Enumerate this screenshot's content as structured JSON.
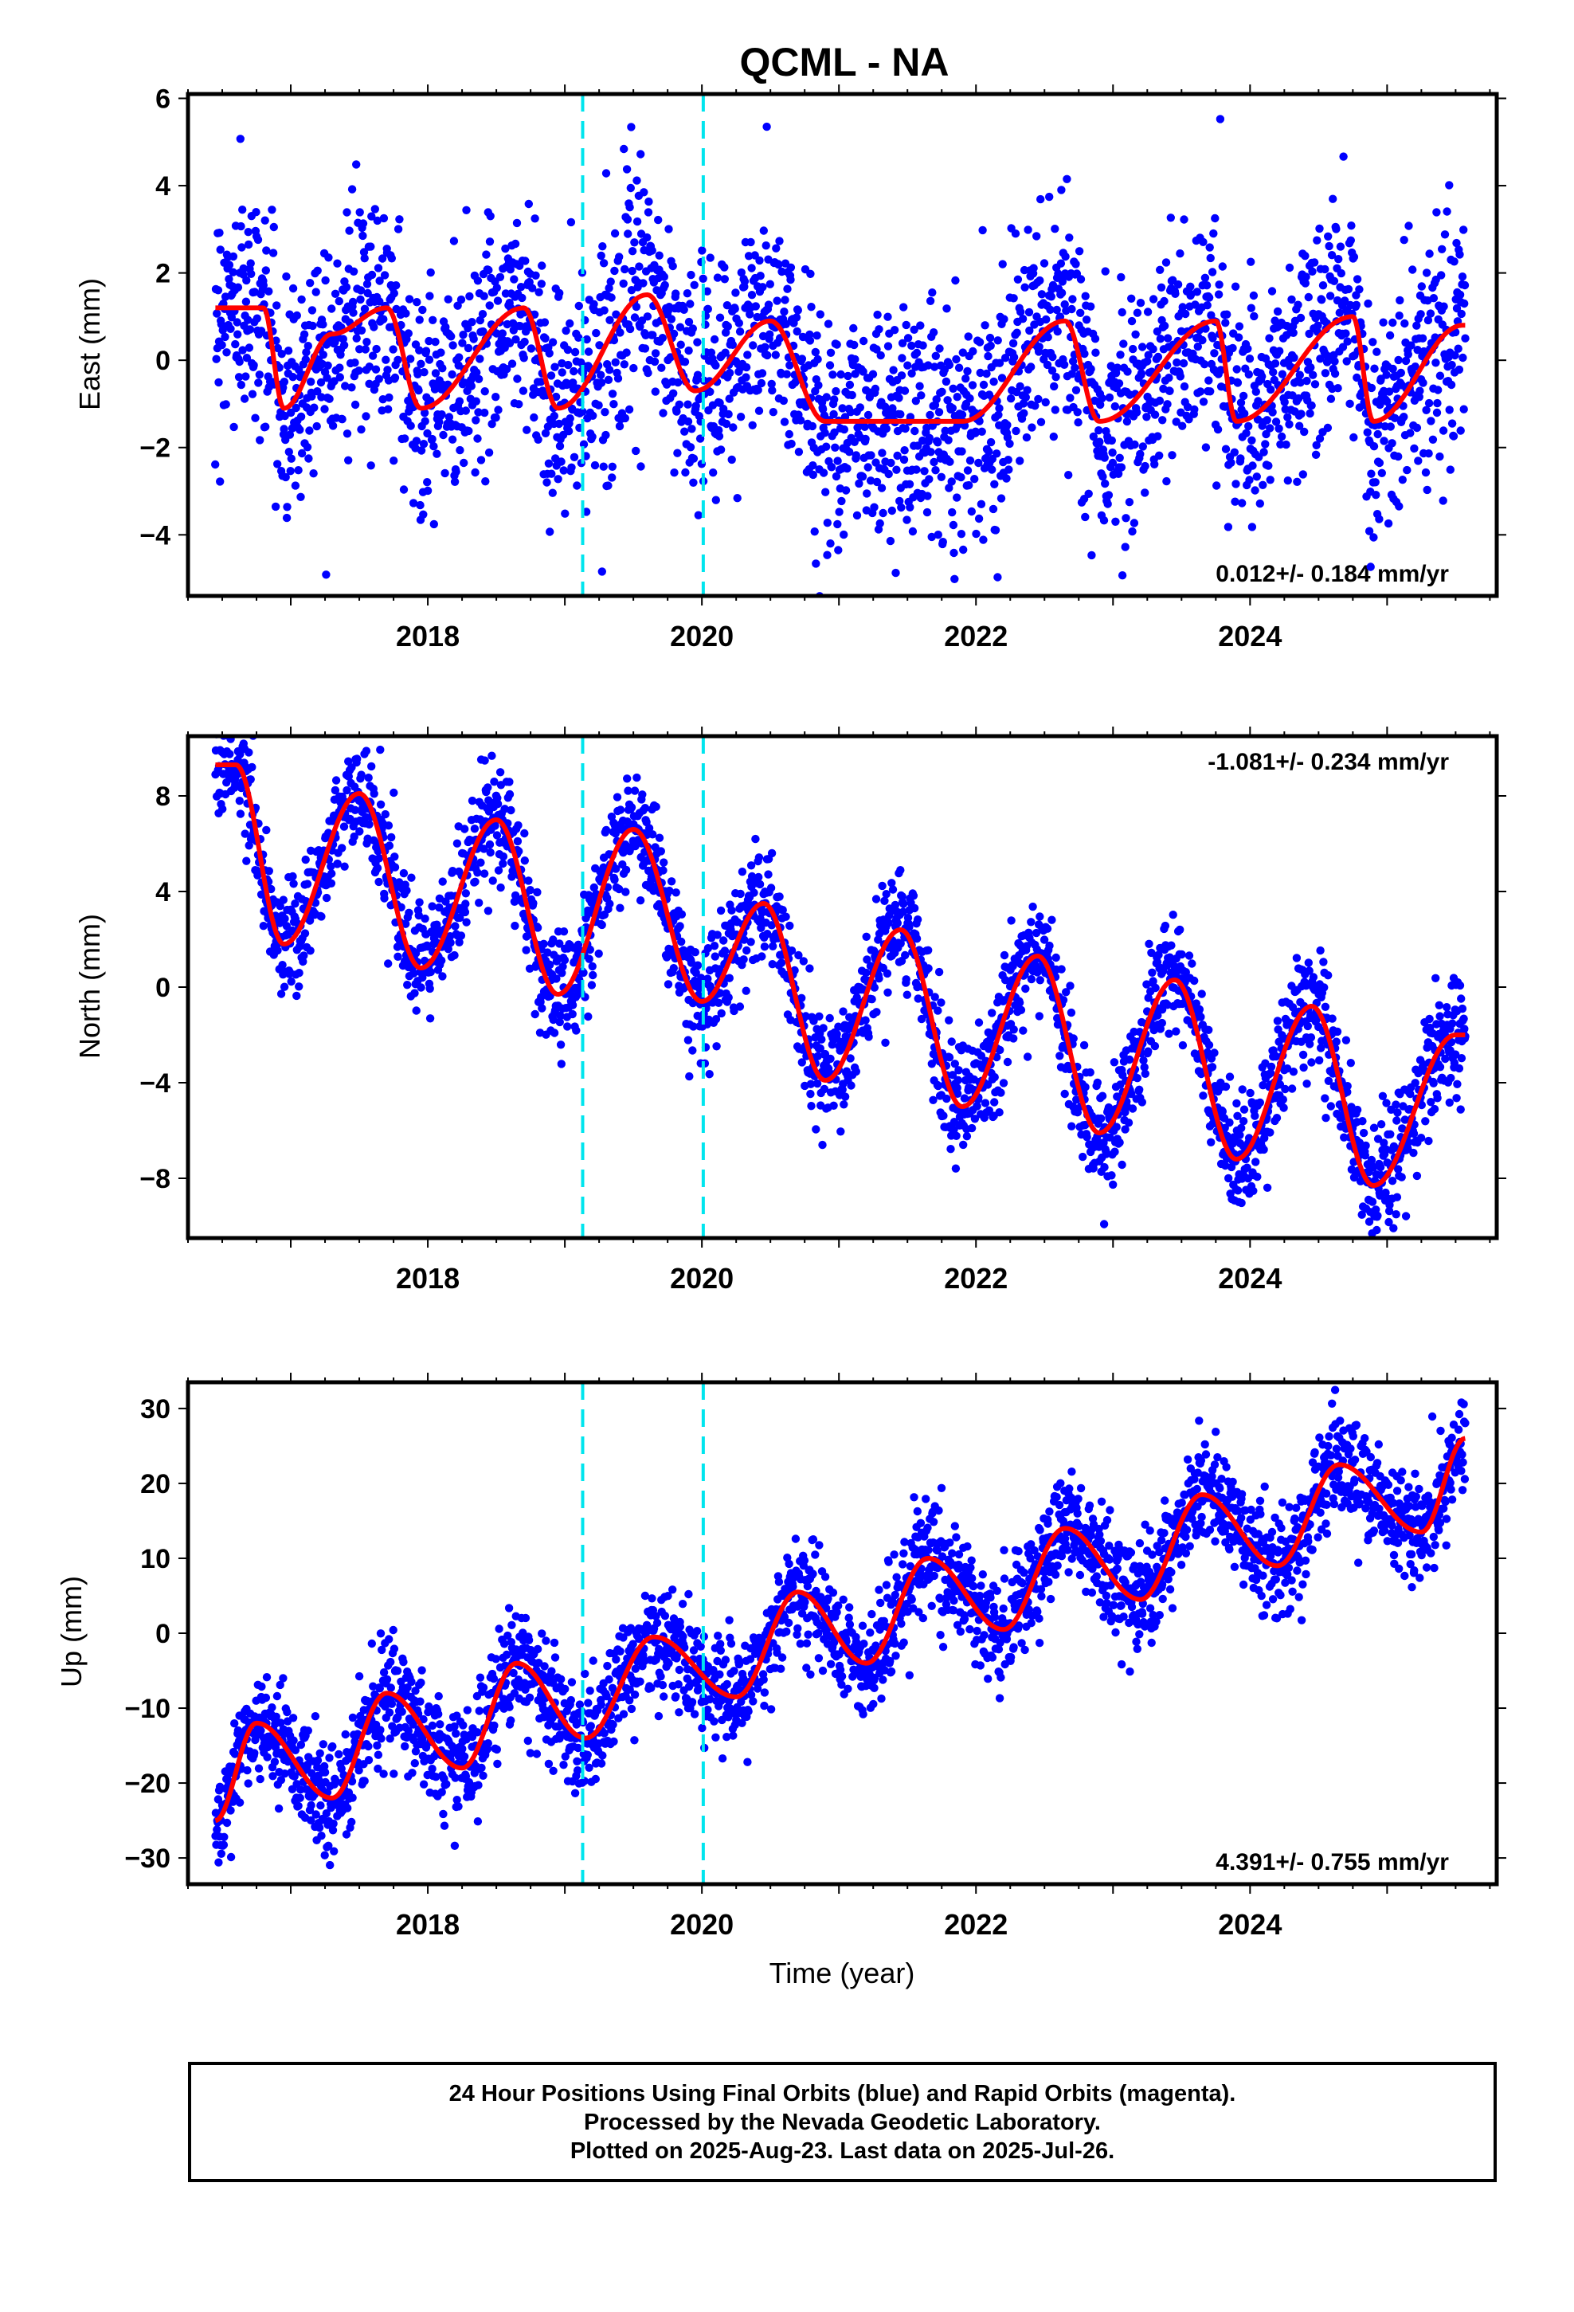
{
  "chart_data": [
    {
      "type": "scatter",
      "title": "QCML - NA",
      "ylabel": "East (mm)",
      "xlabel": "",
      "xlim": [
        2016.25,
        2025.8
      ],
      "ylim": [
        -5.4,
        6.1
      ],
      "x_ticks": [
        2018,
        2020,
        2022,
        2024
      ],
      "x_tick_labels": [
        "2018",
        "2020",
        "2022",
        "2024"
      ],
      "y_ticks": [
        -4,
        -2,
        0,
        2,
        4,
        6
      ],
      "y_tick_labels": [
        "−4",
        "−2",
        "0",
        "2",
        "4",
        "6"
      ],
      "rate_label": "0.012+/- 0.184 mm/yr",
      "rate_position": "bottom-right",
      "data_range_x": [
        2016.45,
        2025.57
      ],
      "trend": {
        "rate_mm_yr": 0.012,
        "value_at_2016_5": 0.3
      },
      "seasonal": {
        "annual_amplitude": 0.9,
        "semiannual_amplitude": 0.5,
        "scatter_sd": 1.3
      },
      "fit_peaks": [
        {
          "x": 2016.8,
          "y": 1.2
        },
        {
          "x": 2016.95,
          "y": -1.1
        },
        {
          "x": 2017.3,
          "y": 0.6
        },
        {
          "x": 2017.7,
          "y": 1.2
        },
        {
          "x": 2017.95,
          "y": -1.1
        },
        {
          "x": 2018.7,
          "y": 1.2
        },
        {
          "x": 2018.95,
          "y": -1.1
        },
        {
          "x": 2019.6,
          "y": 1.5
        },
        {
          "x": 2019.95,
          "y": -0.7
        },
        {
          "x": 2020.5,
          "y": 0.9
        },
        {
          "x": 2020.9,
          "y": -1.4
        },
        {
          "x": 2021.9,
          "y": -1.4
        },
        {
          "x": 2022.65,
          "y": 0.9
        },
        {
          "x": 2022.9,
          "y": -1.4
        },
        {
          "x": 2023.75,
          "y": 0.9
        },
        {
          "x": 2023.9,
          "y": -1.4
        },
        {
          "x": 2024.75,
          "y": 1.0
        },
        {
          "x": 2024.9,
          "y": -1.4
        },
        {
          "x": 2025.55,
          "y": 0.8
        }
      ],
      "series": [
        {
          "name": "",
          "color": "#0000ff",
          "marker": "dot"
        },
        {
          "name": "",
          "color": "#ff0000",
          "marker": "line"
        }
      ]
    },
    {
      "type": "scatter",
      "title": "",
      "ylabel": "North (mm)",
      "xlabel": "",
      "xlim": [
        2016.25,
        2025.8
      ],
      "ylim": [
        -10.5,
        10.5
      ],
      "x_ticks": [
        2018,
        2020,
        2022,
        2024
      ],
      "x_tick_labels": [
        "2018",
        "2020",
        "2022",
        "2024"
      ],
      "y_ticks": [
        -8,
        -4,
        0,
        4,
        8
      ],
      "y_tick_labels": [
        "−8",
        "−4",
        "0",
        "4",
        "8"
      ],
      "rate_label": "-1.081+/- 0.234 mm/yr",
      "rate_position": "top-right",
      "data_range_x": [
        2016.45,
        2025.57
      ],
      "trend": {
        "rate_mm_yr": -1.081
      },
      "seasonal": {
        "annual_amplitude": 3.7,
        "scatter_sd": 1.2
      },
      "fit_peaks": [
        {
          "x": 2016.6,
          "y": 9.3
        },
        {
          "x": 2016.95,
          "y": 1.8
        },
        {
          "x": 2017.5,
          "y": 8.1
        },
        {
          "x": 2017.95,
          "y": 0.8
        },
        {
          "x": 2018.5,
          "y": 7.0
        },
        {
          "x": 2018.95,
          "y": -0.3
        },
        {
          "x": 2019.5,
          "y": 6.6
        },
        {
          "x": 2020.0,
          "y": -0.6
        },
        {
          "x": 2020.45,
          "y": 3.5
        },
        {
          "x": 2020.9,
          "y": -3.9
        },
        {
          "x": 2021.45,
          "y": 2.4
        },
        {
          "x": 2021.9,
          "y": -5.0
        },
        {
          "x": 2022.45,
          "y": 1.3
        },
        {
          "x": 2022.9,
          "y": -6.1
        },
        {
          "x": 2023.45,
          "y": 0.3
        },
        {
          "x": 2023.9,
          "y": -7.2
        },
        {
          "x": 2024.45,
          "y": -0.8
        },
        {
          "x": 2024.9,
          "y": -8.3
        },
        {
          "x": 2025.5,
          "y": -2.0
        }
      ],
      "series": [
        {
          "name": "",
          "color": "#0000ff",
          "marker": "dot"
        },
        {
          "name": "",
          "color": "#ff0000",
          "marker": "line"
        }
      ]
    },
    {
      "type": "scatter",
      "title": "",
      "ylabel": "Up (mm)",
      "xlabel": "Time (year)",
      "xlim": [
        2016.25,
        2025.8
      ],
      "ylim": [
        -33.5,
        33.5
      ],
      "x_ticks": [
        2018,
        2020,
        2022,
        2024
      ],
      "x_tick_labels": [
        "2018",
        "2020",
        "2022",
        "2024"
      ],
      "y_ticks": [
        -30,
        -20,
        -10,
        0,
        10,
        20,
        30
      ],
      "y_tick_labels": [
        "−30",
        "−20",
        "−10",
        "0",
        "10",
        "20",
        "30"
      ],
      "rate_label": "4.391+/- 0.755 mm/yr",
      "rate_position": "bottom-right",
      "data_range_x": [
        2016.45,
        2025.57
      ],
      "trend": {
        "rate_mm_yr": 4.391
      },
      "seasonal": {
        "annual_amplitude": 5.5,
        "scatter_sd": 3.6
      },
      "fit_peaks": [
        {
          "x": 2016.45,
          "y": -25
        },
        {
          "x": 2016.75,
          "y": -12
        },
        {
          "x": 2017.3,
          "y": -22
        },
        {
          "x": 2017.7,
          "y": -8
        },
        {
          "x": 2018.25,
          "y": -18
        },
        {
          "x": 2018.65,
          "y": -4
        },
        {
          "x": 2019.15,
          "y": -14
        },
        {
          "x": 2019.65,
          "y": -0.5
        },
        {
          "x": 2020.25,
          "y": -8.5
        },
        {
          "x": 2020.7,
          "y": 5.5
        },
        {
          "x": 2021.2,
          "y": -4
        },
        {
          "x": 2021.65,
          "y": 10
        },
        {
          "x": 2022.2,
          "y": 0.5
        },
        {
          "x": 2022.65,
          "y": 14
        },
        {
          "x": 2023.2,
          "y": 4.5
        },
        {
          "x": 2023.65,
          "y": 18.5
        },
        {
          "x": 2024.2,
          "y": 9
        },
        {
          "x": 2024.65,
          "y": 22.5
        },
        {
          "x": 2025.25,
          "y": 13.5
        },
        {
          "x": 2025.57,
          "y": 26
        }
      ],
      "series": [
        {
          "name": "",
          "color": "#0000ff",
          "marker": "dot"
        },
        {
          "name": "",
          "color": "#ff0000",
          "marker": "line"
        }
      ]
    }
  ],
  "event_lines": {
    "x": [
      2019.13,
      2020.01
    ],
    "color": "#00e5ee",
    "style": "dashed"
  },
  "footer": {
    "line1": "24 Hour Positions Using Final Orbits (blue) and Rapid Orbits (magenta).",
    "line2": "Processed by the Nevada Geodetic Laboratory.",
    "line3": "Plotted on 2025-Aug-23. Last data on 2025-Jul-26."
  }
}
